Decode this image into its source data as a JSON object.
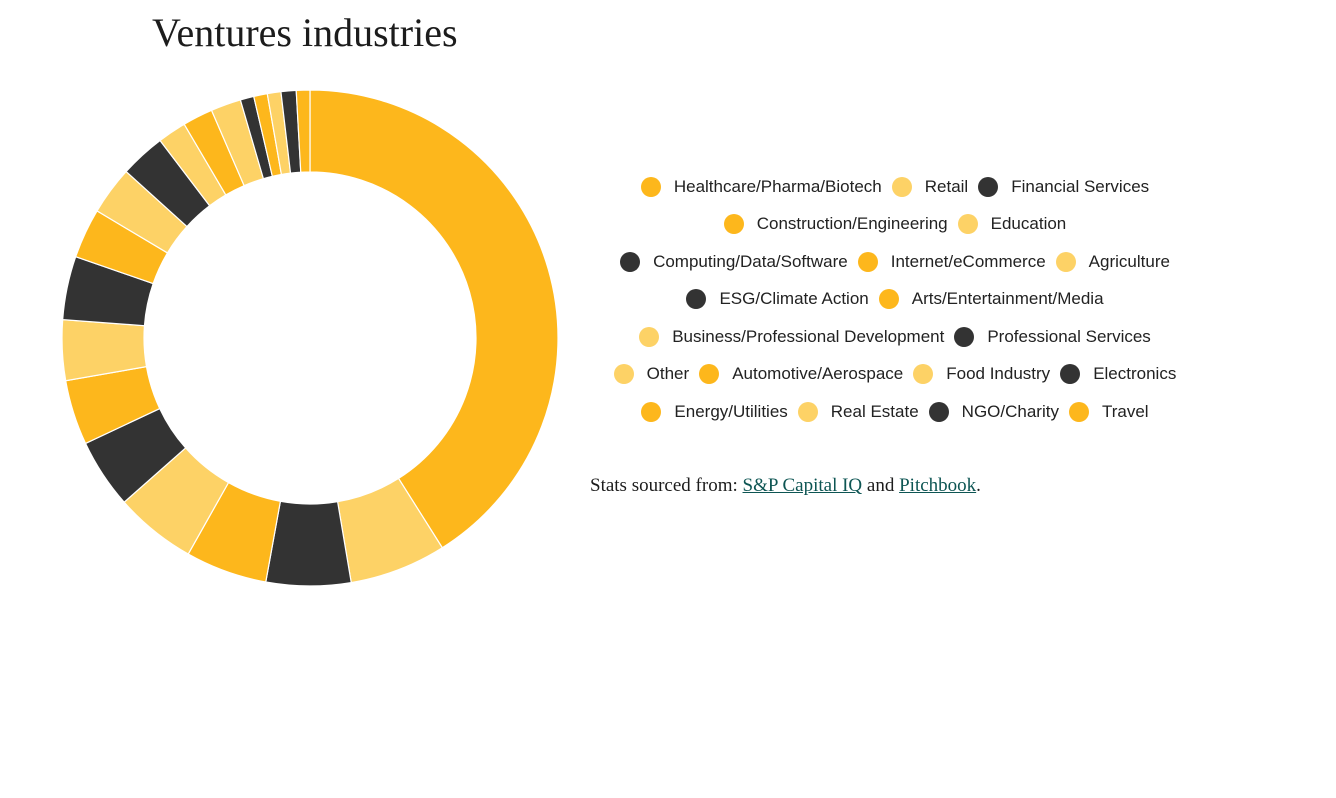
{
  "chart_data": {
    "type": "pie",
    "variant": "donut",
    "title": "Ventures industries",
    "colors": {
      "gold": "#FDB71C",
      "light": "#FDD266",
      "dark": "#333333",
      "separator": "#ffffff"
    },
    "slices": [
      {
        "label": "Healthcare/Pharma/Biotech",
        "color": "#FDB71C",
        "value": 41.7
      },
      {
        "label": "Retail",
        "color": "#FDD266",
        "value": 6.4
      },
      {
        "label": "Financial Services",
        "color": "#333333",
        "value": 5.6
      },
      {
        "label": "Construction/Engineering",
        "color": "#FDB71C",
        "value": 5.4
      },
      {
        "label": "Education",
        "color": "#FDD266",
        "value": 5.4
      },
      {
        "label": "Computing/Data/Software",
        "color": "#333333",
        "value": 4.6
      },
      {
        "label": "Internet/eCommerce",
        "color": "#FDB71C",
        "value": 4.3
      },
      {
        "label": "Agriculture",
        "color": "#FDD266",
        "value": 4.0
      },
      {
        "label": "ESG/Climate Action",
        "color": "#333333",
        "value": 4.2
      },
      {
        "label": "Arts/Entertainment/Media",
        "color": "#FDB71C",
        "value": 3.3
      },
      {
        "label": "Business/Professional Development",
        "color": "#FDD266",
        "value": 3.2
      },
      {
        "label": "Professional Services",
        "color": "#333333",
        "value": 3.0
      },
      {
        "label": "Other",
        "color": "#FDD266",
        "value": 1.9
      },
      {
        "label": "Automotive/Aerospace",
        "color": "#FDB71C",
        "value": 2.0
      },
      {
        "label": "Food Industry",
        "color": "#FDD266",
        "value": 2.0
      },
      {
        "label": "Electronics",
        "color": "#333333",
        "value": 0.9
      },
      {
        "label": "Energy/Utilities",
        "color": "#FDB71C",
        "value": 0.9
      },
      {
        "label": "Real Estate",
        "color": "#FDD266",
        "value": 0.9
      },
      {
        "label": "NGO/Charity",
        "color": "#333333",
        "value": 1.0
      },
      {
        "label": "Travel",
        "color": "#FDB71C",
        "value": 0.9
      }
    ],
    "legend_rows": [
      [
        0,
        1,
        2
      ],
      [
        3,
        4
      ],
      [
        5,
        6,
        7
      ],
      [
        8,
        9
      ],
      [
        10,
        11
      ],
      [
        12,
        13,
        14,
        15
      ],
      [
        16,
        17,
        18,
        19
      ]
    ],
    "legend_placement": "right"
  },
  "source": {
    "prefix": "Stats sourced from: ",
    "link1": "S&P Capital IQ",
    "middle": " and ",
    "link2": "Pitchbook",
    "suffix": "."
  }
}
